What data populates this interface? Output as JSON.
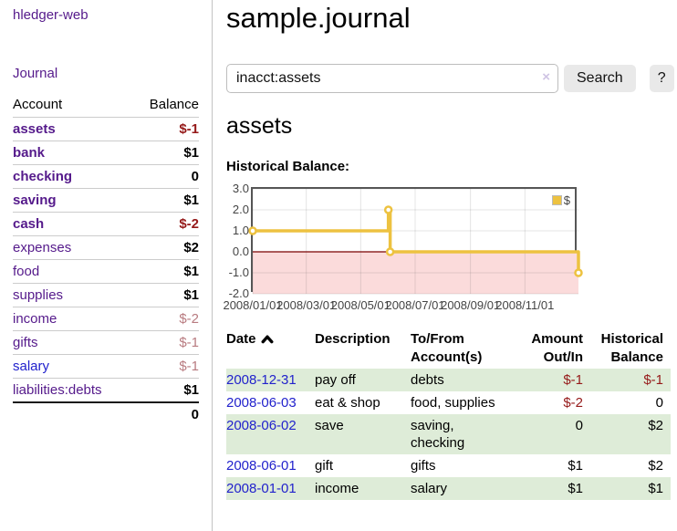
{
  "sidebar": {
    "brand": "hledger-web",
    "journal_link": "Journal",
    "accounts": {
      "header_account": "Account",
      "header_balance": "Balance",
      "rows": [
        {
          "name": "assets",
          "balance": "$-1"
        },
        {
          "name": "bank",
          "balance": "$1"
        },
        {
          "name": "checking",
          "balance": "0"
        },
        {
          "name": "saving",
          "balance": "$1"
        },
        {
          "name": "cash",
          "balance": "$-2"
        },
        {
          "name": "expenses",
          "balance": "$2"
        },
        {
          "name": "food",
          "balance": "$1"
        },
        {
          "name": "supplies",
          "balance": "$1"
        },
        {
          "name": "income",
          "balance": "$-2"
        },
        {
          "name": "gifts",
          "balance": "$-1"
        },
        {
          "name": "salary",
          "balance": "$-1"
        },
        {
          "name": "liabilities:debts",
          "balance": "$1"
        }
      ],
      "total": "0"
    }
  },
  "main": {
    "title": "sample.journal",
    "search": {
      "value": "inacct:assets",
      "clear_icon": "×",
      "button": "Search",
      "help_button": "?"
    },
    "heading": "assets",
    "chart_label": "Historical Balance:",
    "register": {
      "headers": {
        "date": "Date",
        "description": "Description",
        "tofrom": "To/From Account(s)",
        "amount": "Amount Out/In",
        "balance": "Historical Balance"
      },
      "rows": [
        {
          "date": "2008-12-31",
          "description": "pay off",
          "accounts": "debts",
          "amount": "$-1",
          "balance": "$-1"
        },
        {
          "date": "2008-06-03",
          "description": "eat & shop",
          "accounts": "food, supplies",
          "amount": "$-2",
          "balance": "0"
        },
        {
          "date": "2008-06-02",
          "description": "save",
          "accounts": "saving,\nchecking",
          "amount": "0",
          "balance": "$2"
        },
        {
          "date": "2008-06-01",
          "description": "gift",
          "accounts": "gifts",
          "amount": "$1",
          "balance": "$2"
        },
        {
          "date": "2008-01-01",
          "description": "income",
          "accounts": "salary",
          "amount": "$1",
          "balance": "$1"
        }
      ]
    }
  },
  "chart_data": {
    "type": "line",
    "title": "Historical Balance",
    "step": true,
    "xlim": [
      "2008-01-01",
      "2008-12-31"
    ],
    "ylim": [
      -2,
      3
    ],
    "x_ticks": [
      {
        "label": "2008/01/01",
        "date": "2008-01-01"
      },
      {
        "label": "2008/03/01",
        "date": "2008-03-01"
      },
      {
        "label": "2008/05/01",
        "date": "2008-05-01"
      },
      {
        "label": "2008/07/01",
        "date": "2008-07-01"
      },
      {
        "label": "2008/09/01",
        "date": "2008-09-01"
      },
      {
        "label": "2008/11/01",
        "date": "2008-11-01"
      }
    ],
    "y_ticks": [
      {
        "label": "3.0",
        "value": 3
      },
      {
        "label": "2.0",
        "value": 2
      },
      {
        "label": "1.0",
        "value": 1
      },
      {
        "label": "0.0",
        "value": 0
      },
      {
        "label": "-1.0",
        "value": -1
      },
      {
        "label": "-2.0",
        "value": -2
      }
    ],
    "series": [
      {
        "name": "$",
        "color": "#edc240",
        "points": [
          [
            "2008-01-01",
            1
          ],
          [
            "2008-06-01",
            2
          ],
          [
            "2008-06-03",
            0
          ],
          [
            "2008-12-31",
            -1
          ]
        ]
      }
    ],
    "legend": {
      "position": "top-right",
      "entries": [
        {
          "label": "$",
          "color": "#edc240"
        }
      ]
    },
    "negative_region_color": "#fbdbdb",
    "zero_line_color": "#7a0000",
    "grid": true
  },
  "colors": {
    "link_purple": "#551a8b",
    "link_blue": "#2222cc",
    "negative_red": "#951919",
    "negative_muted": "#b87b80",
    "row_stripe_green": "#deecd8",
    "chart_line_gold": "#edc240",
    "chart_negative_pink": "#fbdbdb",
    "chart_zero_line": "#7a0000"
  }
}
